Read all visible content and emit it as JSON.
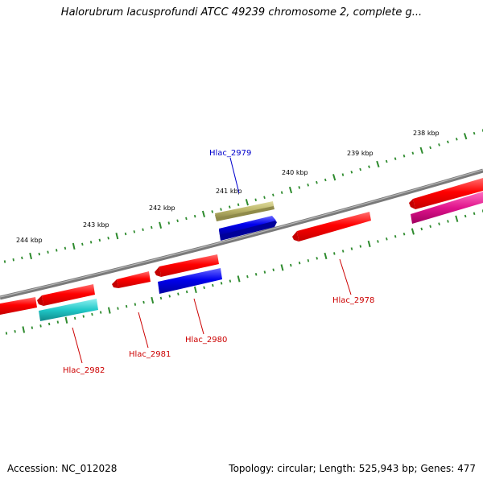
{
  "title": "Halorubrum lacusprofundi ATCC 49239 chromosome 2, complete g...",
  "footer": {
    "accession": "Accession: NC_012028",
    "topology": "Topology: circular; Length: 525,943 bp; Genes: 477"
  },
  "colors": {
    "backbone": "#808080",
    "ticks": "#2e8b2e",
    "gene_label_forward": "#0000cc",
    "gene_label_reverse": "#cc0000",
    "red": "#ff0000",
    "blue": "#0000ee",
    "khaki": "#bdb76b",
    "cyan": "#20c8c8",
    "magenta": "#e0148c"
  },
  "ruler": [
    {
      "label": "244 kbp"
    },
    {
      "label": "243 kbp"
    },
    {
      "label": "242 kbp"
    },
    {
      "label": "241 kbp"
    },
    {
      "label": "240 kbp"
    },
    {
      "label": "239 kbp"
    },
    {
      "label": "238 kbp"
    }
  ],
  "gene_labels": [
    {
      "name": "Hlac_2979",
      "strand": "forward"
    },
    {
      "name": "Hlac_2978",
      "strand": "reverse"
    },
    {
      "name": "Hlac_2980",
      "strand": "reverse"
    },
    {
      "name": "Hlac_2981",
      "strand": "reverse"
    },
    {
      "name": "Hlac_2982",
      "strand": "reverse"
    }
  ]
}
